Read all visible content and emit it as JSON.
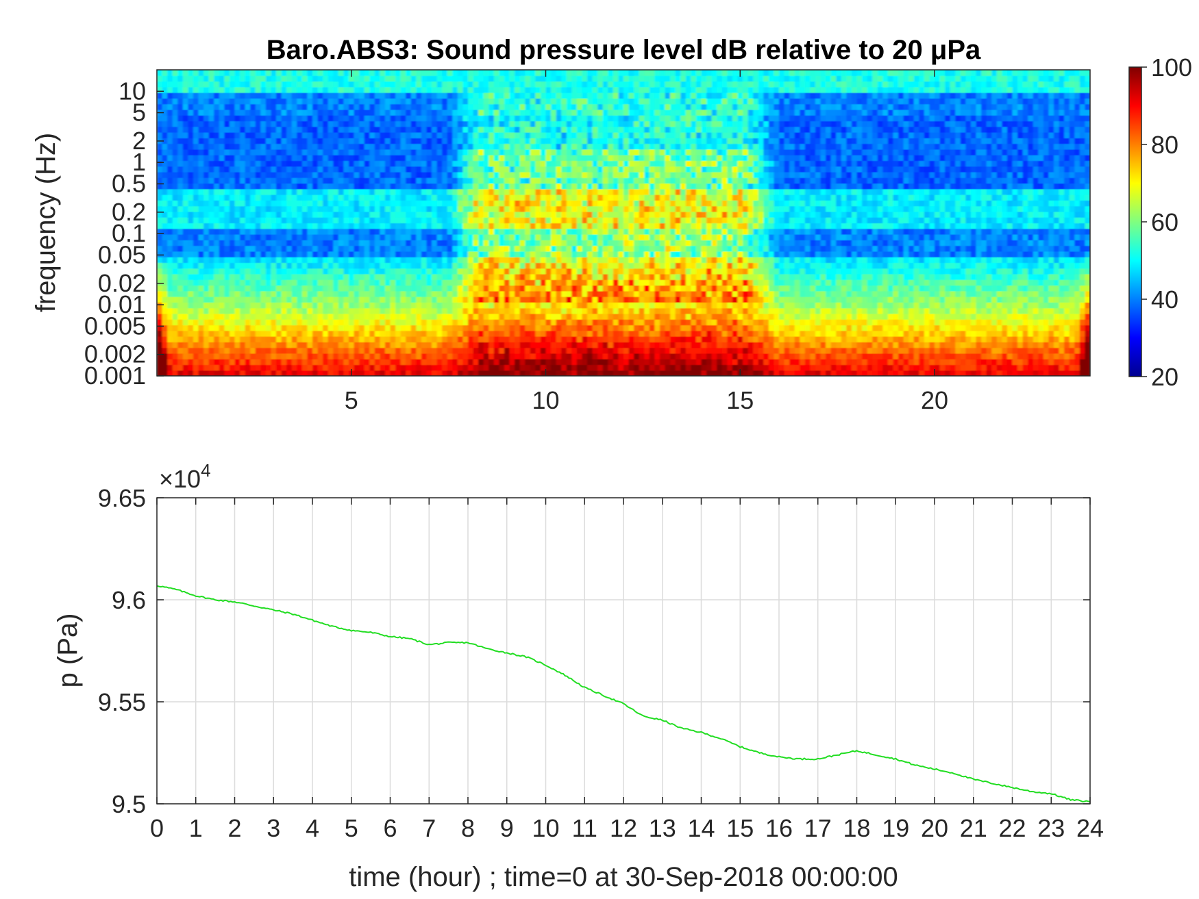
{
  "chart_data": [
    {
      "type": "heatmap",
      "title": "Baro.ABS3: Sound pressure level dB relative to 20 μPa",
      "ylabel": "frequency (Hz)",
      "xlabel": "",
      "xlim": [
        0,
        24
      ],
      "ylim": [
        0.001,
        20
      ],
      "y_scale": "log",
      "x_ticks": [
        "5",
        "10",
        "15",
        "20"
      ],
      "y_ticks": [
        "10",
        "5",
        "2",
        "1",
        "0.5",
        "0.2",
        "0.1",
        "0.05",
        "0.02",
        "0.01",
        "0.005",
        "0.002",
        "0.001"
      ],
      "colormap": "jet",
      "colorbar": {
        "range": [
          20,
          100
        ],
        "ticks": [
          "100",
          "80",
          "60",
          "40",
          "20"
        ]
      },
      "activity_band_hours": [
        7.5,
        16
      ]
    },
    {
      "type": "line",
      "ylabel": "p (Pa)",
      "xlabel": "time (hour) ; time=0 at 30-Sep-2018 00:00:00",
      "y_multiplier": "×10",
      "y_multiplier_exp": "4",
      "xlim": [
        0,
        24
      ],
      "ylim": [
        9.5,
        9.65
      ],
      "x_ticks": [
        "0",
        "1",
        "2",
        "3",
        "4",
        "5",
        "6",
        "7",
        "8",
        "9",
        "10",
        "11",
        "12",
        "13",
        "14",
        "15",
        "16",
        "17",
        "18",
        "19",
        "20",
        "21",
        "22",
        "23",
        "24"
      ],
      "y_ticks": [
        "9.65",
        "9.6",
        "9.55",
        "9.5"
      ],
      "grid": true,
      "series": [
        {
          "color": "#22dd22",
          "x": [
            0,
            0.5,
            1,
            1.5,
            2,
            2.5,
            3,
            3.5,
            4,
            4.5,
            5,
            5.5,
            6,
            6.5,
            7,
            7.5,
            8,
            8.5,
            9,
            9.5,
            10,
            10.5,
            11,
            11.5,
            12,
            12.5,
            13,
            13.5,
            14,
            14.5,
            15,
            15.5,
            16,
            16.5,
            17,
            17.5,
            18,
            18.5,
            19,
            19.5,
            20,
            20.5,
            21,
            21.5,
            22,
            22.5,
            23,
            23.5,
            24
          ],
          "y": [
            9.607,
            9.605,
            9.602,
            9.6,
            9.599,
            9.597,
            9.595,
            9.593,
            9.59,
            9.587,
            9.585,
            9.584,
            9.582,
            9.581,
            9.578,
            9.579,
            9.579,
            9.576,
            9.574,
            9.572,
            9.568,
            9.563,
            9.557,
            9.553,
            9.549,
            9.543,
            9.541,
            9.537,
            9.535,
            9.532,
            9.528,
            9.525,
            9.523,
            9.522,
            9.522,
            9.524,
            9.526,
            9.524,
            9.522,
            9.519,
            9.517,
            9.515,
            9.512,
            9.51,
            9.508,
            9.506,
            9.505,
            9.502,
            9.501
          ]
        }
      ]
    }
  ]
}
